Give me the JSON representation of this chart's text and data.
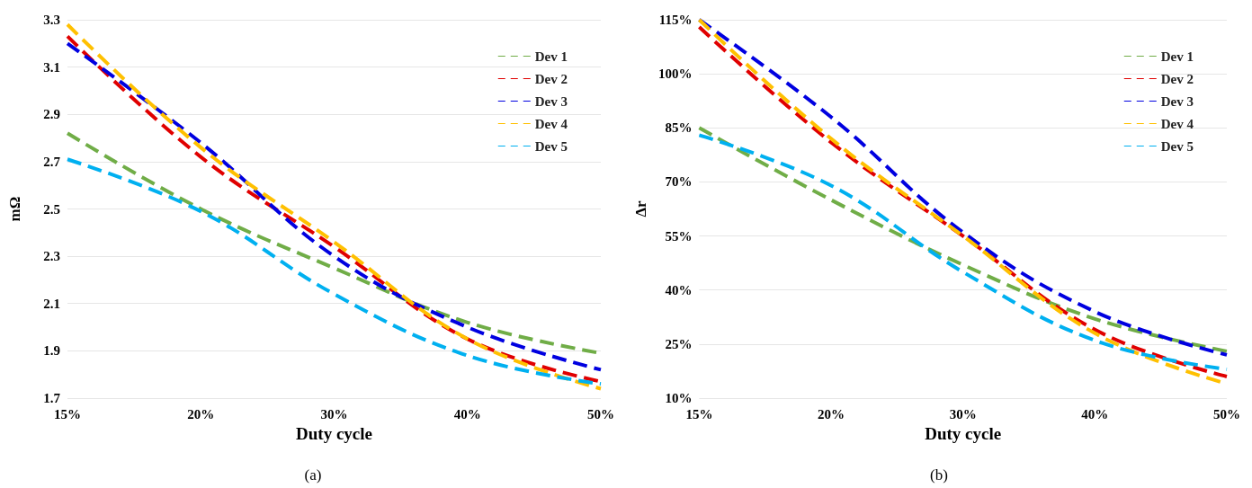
{
  "chart_data": [
    {
      "type": "line",
      "xlabel": "Duty cycle",
      "ylabel": "mΩ",
      "categories": [
        "15%",
        "20%",
        "30%",
        "40%",
        "50%"
      ],
      "ylim": [
        1.7,
        3.3
      ],
      "yticks": [
        1.7,
        1.9,
        2.1,
        2.3,
        2.5,
        2.7,
        2.9,
        3.1,
        3.3
      ],
      "grid": "y",
      "legend": "top right",
      "marker": "none",
      "line_style": "dashed",
      "annotations": [
        "(a)"
      ],
      "series": [
        {
          "name": "Dev 1",
          "color": "#70ad47",
          "values": [
            2.82,
            2.5,
            2.25,
            2.02,
            1.89
          ]
        },
        {
          "name": "Dev 2",
          "color": "#e00000",
          "values": [
            3.23,
            2.72,
            2.34,
            1.95,
            1.77
          ]
        },
        {
          "name": "Dev 3",
          "color": "#0000e0",
          "values": [
            3.2,
            2.78,
            2.3,
            2.0,
            1.82
          ]
        },
        {
          "name": "Dev 4",
          "color": "#ffc000",
          "values": [
            3.28,
            2.76,
            2.36,
            1.95,
            1.74
          ]
        },
        {
          "name": "Dev 5",
          "color": "#00b0f0",
          "values": [
            2.71,
            2.49,
            2.14,
            1.88,
            1.76
          ]
        }
      ]
    },
    {
      "type": "line",
      "xlabel": "Duty cycle",
      "ylabel": "Δr",
      "categories": [
        "15%",
        "20%",
        "30%",
        "40%",
        "50%"
      ],
      "ylim": [
        10,
        115
      ],
      "yticks": [
        {
          "value": 10,
          "label": "10%"
        },
        {
          "value": 25,
          "label": "25%"
        },
        {
          "value": 40,
          "label": "40%"
        },
        {
          "value": 55,
          "label": "55%"
        },
        {
          "value": 70,
          "label": "70%"
        },
        {
          "value": 85,
          "label": "85%"
        },
        {
          "value": 100,
          "label": "100%"
        },
        {
          "value": 115,
          "label": "115%"
        }
      ],
      "grid": "y",
      "legend": "top right",
      "marker": "none",
      "line_style": "dashed",
      "annotations": [
        "(b)"
      ],
      "series": [
        {
          "name": "Dev 1",
          "color": "#70ad47",
          "values": [
            85,
            65,
            47,
            32,
            23
          ]
        },
        {
          "name": "Dev 2",
          "color": "#e00000",
          "values": [
            113,
            81,
            55,
            29,
            16
          ]
        },
        {
          "name": "Dev 3",
          "color": "#0000e0",
          "values": [
            115,
            88,
            56,
            34,
            22
          ]
        },
        {
          "name": "Dev 4",
          "color": "#ffc000",
          "values": [
            115,
            82,
            55,
            28,
            14
          ]
        },
        {
          "name": "Dev 5",
          "color": "#00b0f0",
          "values": [
            83,
            69,
            45,
            26,
            18
          ]
        }
      ]
    }
  ]
}
